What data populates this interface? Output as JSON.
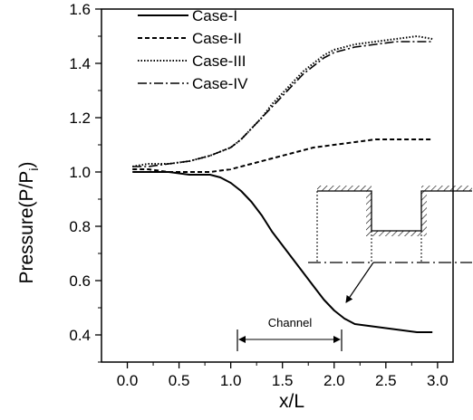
{
  "chart_data": {
    "type": "line",
    "xlabel": "x/L",
    "ylabel": "Pressure(P/P",
    "ylabel_subscript": "i",
    "ylabel_close": ")",
    "xlim": [
      -0.25,
      3.15
    ],
    "ylim": [
      0.3,
      1.6
    ],
    "x_ticks": [
      0.0,
      0.5,
      1.0,
      1.5,
      2.0,
      2.5,
      3.0
    ],
    "x_tick_labels": [
      "0.0",
      "0.5",
      "1.0",
      "1.5",
      "2.0",
      "2.5",
      "3.0"
    ],
    "y_ticks": [
      0.4,
      0.6,
      0.8,
      1.0,
      1.2,
      1.4,
      1.6
    ],
    "y_tick_labels": [
      "0.4",
      "0.6",
      "0.8",
      "1.0",
      "1.2",
      "1.4",
      "1.6"
    ],
    "grid": false,
    "legend_position": "top-left",
    "series": [
      {
        "name": "Case-I",
        "style": "solid",
        "x": [
          0.05,
          0.2,
          0.4,
          0.6,
          0.8,
          0.9,
          1.0,
          1.1,
          1.2,
          1.3,
          1.4,
          1.5,
          1.6,
          1.7,
          1.8,
          1.9,
          2.0,
          2.1,
          2.2,
          2.4,
          2.6,
          2.8,
          2.95
        ],
        "y": [
          1.0,
          1.0,
          1.0,
          0.99,
          0.99,
          0.98,
          0.96,
          0.93,
          0.89,
          0.84,
          0.78,
          0.73,
          0.68,
          0.63,
          0.58,
          0.53,
          0.49,
          0.46,
          0.44,
          0.43,
          0.42,
          0.41,
          0.41
        ]
      },
      {
        "name": "Case-II",
        "style": "dashed",
        "x": [
          0.05,
          0.2,
          0.4,
          0.6,
          0.8,
          1.0,
          1.2,
          1.4,
          1.6,
          1.8,
          2.0,
          2.2,
          2.4,
          2.6,
          2.8,
          2.95
        ],
        "y": [
          1.01,
          1.01,
          1.0,
          1.0,
          1.0,
          1.01,
          1.03,
          1.05,
          1.07,
          1.09,
          1.1,
          1.11,
          1.12,
          1.12,
          1.12,
          1.12
        ]
      },
      {
        "name": "Case-III",
        "style": "dotted",
        "x": [
          0.05,
          0.2,
          0.4,
          0.6,
          0.8,
          1.0,
          1.1,
          1.2,
          1.3,
          1.4,
          1.5,
          1.6,
          1.7,
          1.8,
          1.9,
          2.0,
          2.2,
          2.4,
          2.6,
          2.8,
          2.95
        ],
        "y": [
          1.02,
          1.03,
          1.03,
          1.04,
          1.06,
          1.09,
          1.12,
          1.16,
          1.2,
          1.25,
          1.29,
          1.33,
          1.37,
          1.4,
          1.43,
          1.45,
          1.47,
          1.48,
          1.49,
          1.5,
          1.49
        ]
      },
      {
        "name": "Case-IV",
        "style": "dashdot",
        "x": [
          0.05,
          0.2,
          0.4,
          0.6,
          0.8,
          1.0,
          1.1,
          1.2,
          1.3,
          1.4,
          1.5,
          1.6,
          1.7,
          1.8,
          1.9,
          2.0,
          2.2,
          2.4,
          2.6,
          2.8,
          2.95
        ],
        "y": [
          1.02,
          1.02,
          1.03,
          1.04,
          1.06,
          1.09,
          1.12,
          1.16,
          1.2,
          1.24,
          1.28,
          1.32,
          1.36,
          1.39,
          1.42,
          1.44,
          1.46,
          1.47,
          1.48,
          1.48,
          1.48
        ]
      }
    ],
    "annotations": {
      "channel_label": "Channel",
      "channel_x_range": [
        1.0,
        2.0
      ],
      "channel_y": 0.4
    }
  }
}
